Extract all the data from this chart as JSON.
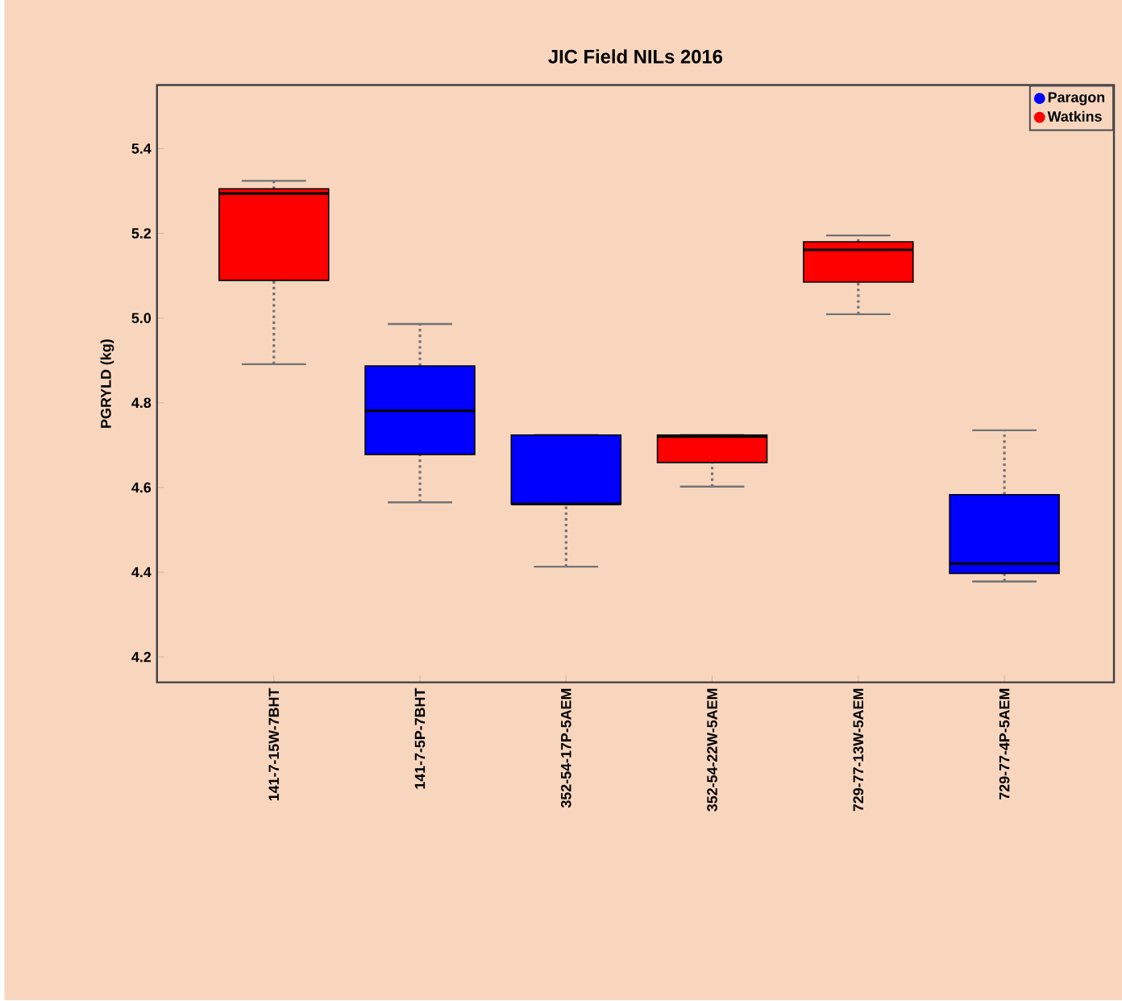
{
  "chart_data": {
    "type": "box",
    "title": "JIC Field NILs 2016",
    "ylabel": "PGRYLD (kg)",
    "categories": [
      "141-7-15W-7BHT",
      "141-7-5P-7BHT",
      "352-54-17P-5AEM",
      "352-54-22W-5AEM",
      "729-77-13W-5AEM",
      "729-77-4P-5AEM"
    ],
    "series": [
      {
        "name": "Paragon",
        "color": "#0000ff",
        "boxes": [
          null,
          {
            "low": 4.565,
            "q1": 4.678,
            "median": 4.781,
            "q3": 4.887,
            "high": 4.986
          },
          {
            "low": 4.413,
            "q1": 4.561,
            "median": 4.561,
            "q3": 4.724,
            "high": 4.724
          },
          null,
          null,
          {
            "low": 4.378,
            "q1": 4.397,
            "median": 4.42,
            "q3": 4.583,
            "high": 4.735
          }
        ]
      },
      {
        "name": "Watkins",
        "color": "#ff0000",
        "boxes": [
          {
            "low": 4.891,
            "q1": 5.089,
            "median": 5.294,
            "q3": 5.305,
            "high": 5.324
          },
          null,
          null,
          {
            "low": 4.602,
            "q1": 4.659,
            "median": 4.72,
            "q3": 4.724,
            "high": 4.724
          },
          {
            "low": 5.009,
            "q1": 5.085,
            "median": 5.161,
            "q3": 5.18,
            "high": 5.195
          },
          null
        ]
      }
    ],
    "ylim": [
      4.14,
      5.55
    ],
    "yticks": [
      4.2,
      4.4,
      4.6,
      4.8,
      {
        "value": 5.0,
        "label": "5.0"
      },
      5.2,
      5.4
    ],
    "grid": false,
    "legend": "top right"
  }
}
